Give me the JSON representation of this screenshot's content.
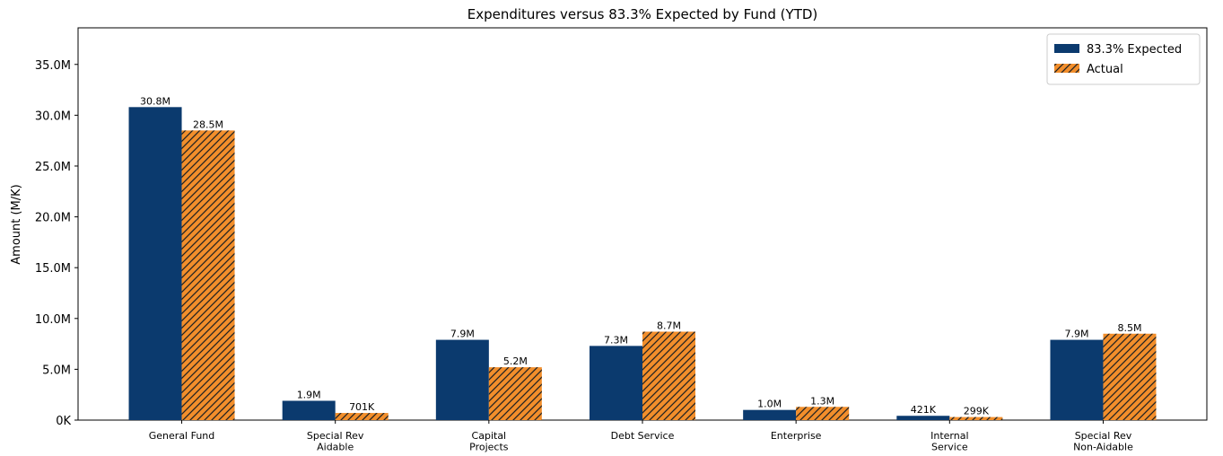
{
  "chart_data": {
    "type": "bar",
    "title": "Expenditures versus 83.3% Expected by Fund (YTD)",
    "ylabel": "Amount (M/K)",
    "categories": [
      "General Fund",
      "Special Rev\nAidable",
      "Capital\nProjects",
      "Debt Service",
      "Enterprise",
      "Internal\nService",
      "Special Rev\nNon-Aidable"
    ],
    "series": [
      {
        "name": "83.3% Expected",
        "color": "#0b3a6e",
        "hatch": false,
        "values": [
          30800000,
          1900000,
          7900000,
          7300000,
          1000000,
          421000,
          7900000
        ],
        "value_labels": [
          "30.8M",
          "1.9M",
          "7.9M",
          "7.3M",
          "1.0M",
          "421K",
          "7.9M"
        ]
      },
      {
        "name": "Actual",
        "color": "#f28e2b",
        "hatch": true,
        "values": [
          28500000,
          701000,
          5200000,
          8700000,
          1300000,
          299000,
          8500000
        ],
        "value_labels": [
          "28.5M",
          "701K",
          "5.2M",
          "8.7M",
          "1.3M",
          "299K",
          "8.5M"
        ]
      }
    ],
    "ylim": [
      0,
      38600000
    ],
    "yticks": [
      {
        "value": 0,
        "label": "0K"
      },
      {
        "value": 5000000,
        "label": "5.0M"
      },
      {
        "value": 10000000,
        "label": "10.0M"
      },
      {
        "value": 15000000,
        "label": "15.0M"
      },
      {
        "value": 20000000,
        "label": "20.0M"
      },
      {
        "value": 25000000,
        "label": "25.0M"
      },
      {
        "value": 30000000,
        "label": "30.0M"
      },
      {
        "value": 35000000,
        "label": "35.0M"
      }
    ],
    "legend": "upper right",
    "grid": false
  }
}
